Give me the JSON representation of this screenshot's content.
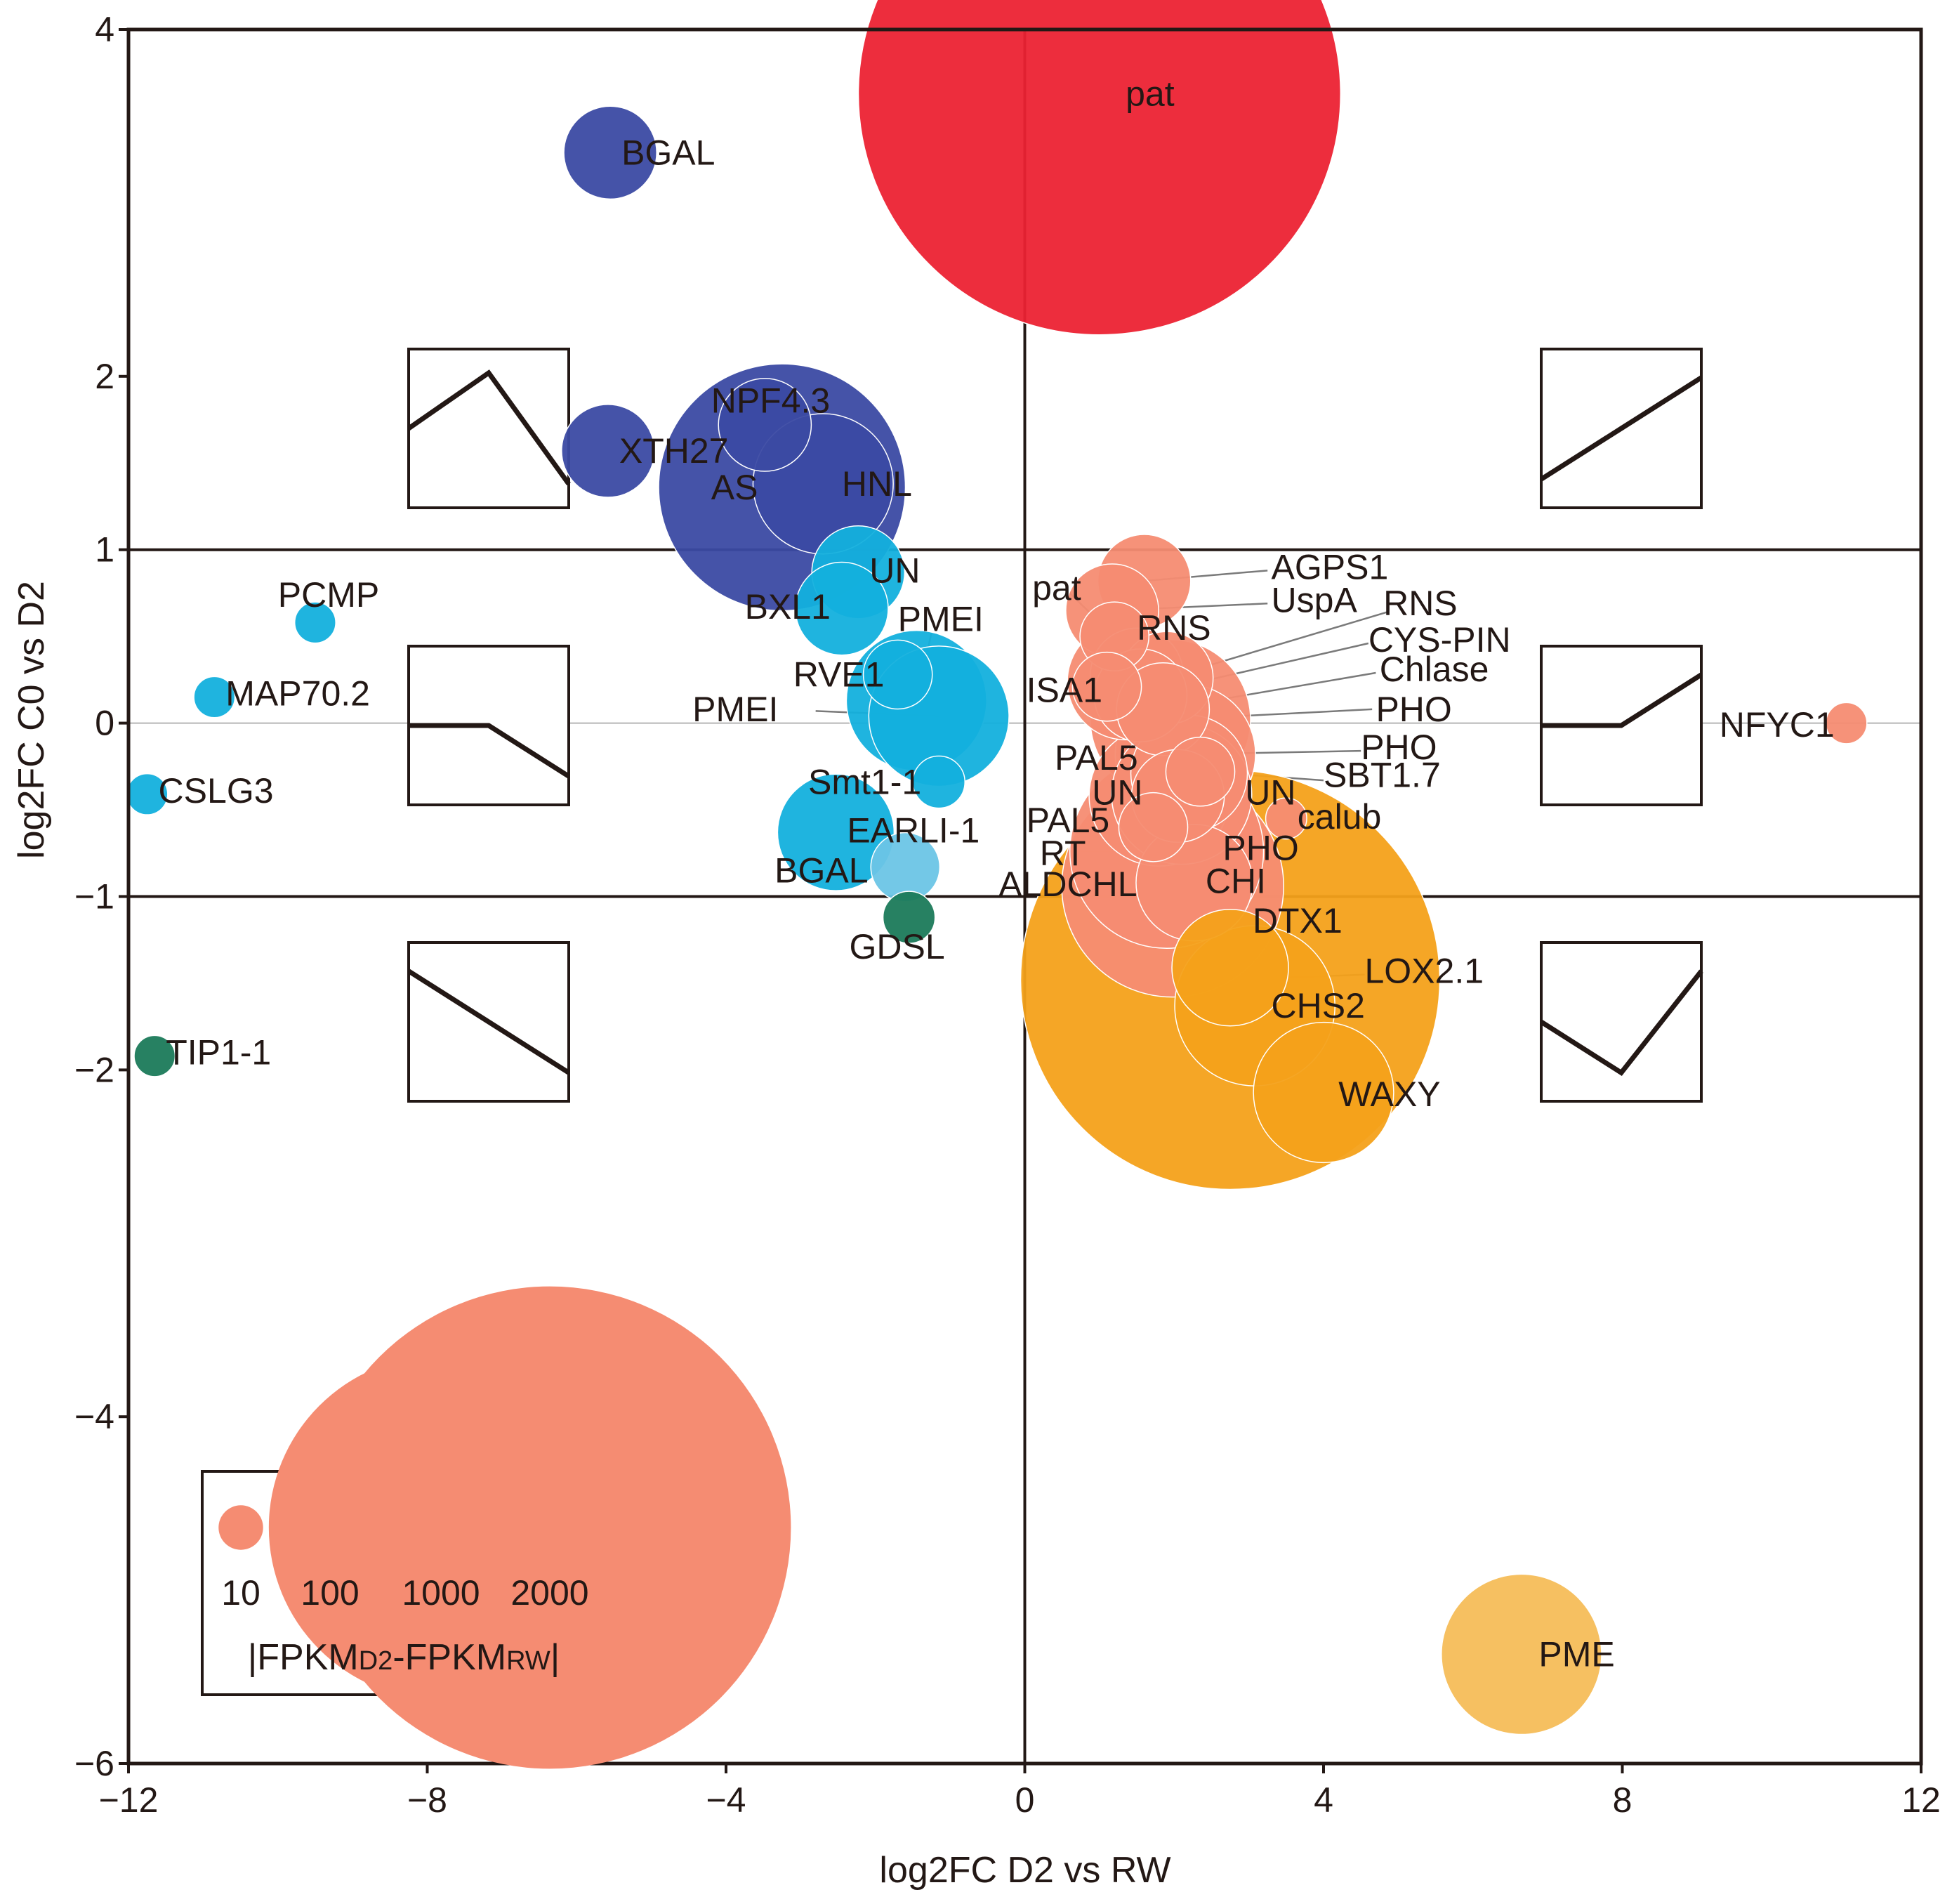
{
  "chart_data": {
    "type": "scatter",
    "title": "",
    "xlabel": "log2FC D2 vs RW",
    "ylabel": "log2FC C0 vs D2",
    "xlim": [
      -12,
      12
    ],
    "ylim": [
      -6,
      4
    ],
    "xticks": [
      -12,
      -8,
      -4,
      0,
      4,
      8,
      12
    ],
    "yticks": [
      4,
      2,
      1,
      0,
      -1,
      -2,
      -4,
      -6
    ],
    "xtick_labels": [
      "−12",
      "−8",
      "−4",
      "0",
      "4",
      "8",
      "12"
    ],
    "ytick_labels": [
      "4",
      "2",
      "1",
      "0",
      "−1",
      "−2",
      "−4",
      "−6"
    ],
    "thresholds": {
      "y": [
        1,
        -1
      ],
      "x": [
        0
      ]
    },
    "colors": {
      "navy": "#3b4aa3",
      "cyan": "#13b0dd",
      "lightblue": "#6cc5e6",
      "green": "#1b7a5a",
      "red": "#ec2233",
      "salmon": "#f58c72",
      "orange": "#f4a11a",
      "lightorange": "#f6bd59",
      "leader": "#7a7a7a"
    },
    "points": [
      {
        "label": "pat",
        "x": 1.0,
        "y": 3.63,
        "size": 2000,
        "color": "red",
        "lx": 1.35,
        "ly": 3.63
      },
      {
        "label": "BGAL",
        "x": -5.55,
        "y": 3.29,
        "size": 60,
        "color": "navy",
        "lx": -5.4,
        "ly": 3.29
      },
      {
        "label": "NPF4.3",
        "x": -3.48,
        "y": 1.72,
        "size": 60,
        "color": "navy",
        "lx": -4.2,
        "ly": 1.86
      },
      {
        "label": "XTH27",
        "x": -5.58,
        "y": 1.57,
        "size": 60,
        "color": "navy",
        "lx": -5.43,
        "ly": 1.57
      },
      {
        "label": "AS",
        "x": -3.25,
        "y": 1.36,
        "size": 500,
        "color": "navy",
        "lx": -4.2,
        "ly": 1.36
      },
      {
        "label": "HNL",
        "x": -2.7,
        "y": 1.38,
        "size": 150,
        "color": "navy",
        "lx": -2.45,
        "ly": 1.38
      },
      {
        "label": "UN",
        "x": -2.23,
        "y": 0.87,
        "size": 60,
        "color": "cyan",
        "lx": -2.08,
        "ly": 0.88
      },
      {
        "label": "PCMP",
        "x": -9.5,
        "y": 0.58,
        "size": 8,
        "color": "cyan",
        "lx": -10.0,
        "ly": 0.74
      },
      {
        "label": "BXL1",
        "x": -2.45,
        "y": 0.66,
        "size": 60,
        "color": "cyan",
        "lx": -3.75,
        "ly": 0.67
      },
      {
        "label": "PMEI",
        "x": -1.45,
        "y": 0.13,
        "size": 150,
        "color": "cyan",
        "lx": -1.7,
        "ly": 0.6
      },
      {
        "label": "RVE1",
        "x": -1.7,
        "y": 0.28,
        "size": 30,
        "color": "cyan",
        "lx": -3.1,
        "ly": 0.28
      },
      {
        "label": "PMEI",
        "x": -1.15,
        "y": 0.04,
        "size": 150,
        "color": "cyan",
        "lx": -4.45,
        "ly": 0.08
      },
      {
        "label": "MAP70.2",
        "x": -10.85,
        "y": 0.15,
        "size": 8,
        "color": "cyan",
        "lx": -10.7,
        "ly": 0.17
      },
      {
        "label": "CSLG3",
        "x": -11.75,
        "y": -0.41,
        "size": 8,
        "color": "cyan",
        "lx": -11.6,
        "ly": -0.39
      },
      {
        "label": "Smt1-1",
        "x": -1.15,
        "y": -0.34,
        "size": 15,
        "color": "cyan",
        "lx": -2.9,
        "ly": -0.34
      },
      {
        "label": "EARLI-1",
        "x": -2.53,
        "y": -0.63,
        "size": 100,
        "color": "cyan",
        "lx": -2.38,
        "ly": -0.62
      },
      {
        "label": "BGAL",
        "x": -1.6,
        "y": -0.83,
        "size": 30,
        "color": "lightblue",
        "lx": -3.35,
        "ly": -0.85
      },
      {
        "label": "GDSL",
        "x": -1.55,
        "y": -1.12,
        "size": 15,
        "color": "green",
        "lx": -2.35,
        "ly": -1.29
      },
      {
        "label": "TIP1-1",
        "x": -11.65,
        "y": -1.92,
        "size": 8,
        "color": "green",
        "lx": -11.5,
        "ly": -1.9
      },
      {
        "label": "AGPS1",
        "x": 1.6,
        "y": 0.82,
        "size": 60,
        "color": "salmon",
        "lx": 3.3,
        "ly": 0.9
      },
      {
        "label": "pat",
        "x": 1.2,
        "y": 0.5,
        "size": 30,
        "color": "salmon",
        "lx": 0.1,
        "ly": 0.78
      },
      {
        "label": "UspA",
        "x": 1.17,
        "y": 0.65,
        "size": 60,
        "color": "salmon",
        "lx": 3.3,
        "ly": 0.71
      },
      {
        "label": "RNS",
        "x": 1.5,
        "y": 0.28,
        "size": 60,
        "color": "salmon",
        "lx": 1.5,
        "ly": 0.55
      },
      {
        "label": "RNS",
        "x": 1.9,
        "y": 0.26,
        "size": 60,
        "color": "salmon",
        "lx": 4.8,
        "ly": 0.69
      },
      {
        "label": "ISA1",
        "x": 1.1,
        "y": 0.21,
        "size": 30,
        "color": "salmon",
        "lx": 0.02,
        "ly": 0.19
      },
      {
        "label": "ISA1",
        "x": 1.35,
        "y": 0.24,
        "size": 100,
        "color": "salmon",
        "lx": 0.02,
        "ly": 0.19
      },
      {
        "label": "CYS-PIN",
        "x": 1.55,
        "y": 0.16,
        "size": 60,
        "color": "salmon",
        "lx": 4.6,
        "ly": 0.48
      },
      {
        "label": "Chlase",
        "x": 1.85,
        "y": 0.08,
        "size": 60,
        "color": "salmon",
        "lx": 4.75,
        "ly": 0.31
      },
      {
        "label": "PHO",
        "x": 1.95,
        "y": 0.02,
        "size": 200,
        "color": "salmon",
        "lx": 4.7,
        "ly": 0.08
      },
      {
        "label": "NFYC1",
        "x": 11.0,
        "y": 0.0,
        "size": 8,
        "color": "salmon",
        "lx": 9.3,
        "ly": -0.01
      },
      {
        "label": "PHO",
        "x": 2.15,
        "y": -0.18,
        "size": 150,
        "color": "salmon",
        "lx": 4.5,
        "ly": -0.14
      },
      {
        "label": "PAL5",
        "x": 2.2,
        "y": -0.29,
        "size": 100,
        "color": "salmon",
        "lx": 0.4,
        "ly": -0.2
      },
      {
        "label": "SBT1.7",
        "x": 2.35,
        "y": -0.28,
        "size": 30,
        "color": "salmon",
        "lx": 4.0,
        "ly": -0.3
      },
      {
        "label": "UN",
        "x": 1.8,
        "y": -0.42,
        "size": 150,
        "color": "salmon",
        "lx": 0.9,
        "ly": -0.4
      },
      {
        "label": "UN",
        "x": 2.1,
        "y": -0.41,
        "size": 150,
        "color": "salmon",
        "lx": 2.95,
        "ly": -0.4
      },
      {
        "label": "calub",
        "x": 3.5,
        "y": -0.55,
        "size": 8,
        "color": "salmon",
        "lx": 3.65,
        "ly": -0.54
      },
      {
        "label": "PAL5",
        "x": 1.72,
        "y": -0.6,
        "size": 30,
        "color": "salmon",
        "lx": 0.02,
        "ly": -0.56
      },
      {
        "label": "PHO",
        "x": 2.05,
        "y": -0.42,
        "size": 60,
        "color": "salmon",
        "lx": 2.65,
        "ly": -0.72
      },
      {
        "label": "RT",
        "x": 1.9,
        "y": -0.74,
        "size": 300,
        "color": "salmon",
        "lx": 0.2,
        "ly": -0.75
      },
      {
        "label": "CHI",
        "x": 2.27,
        "y": -0.92,
        "size": 100,
        "color": "salmon",
        "lx": 2.42,
        "ly": -0.91
      },
      {
        "label": "ALDCHL",
        "x": 1.98,
        "y": -0.94,
        "size": 400,
        "color": "salmon",
        "lx": -0.35,
        "ly": -0.93
      },
      {
        "label": "DTX1",
        "x": 2.75,
        "y": -1.41,
        "size": 100,
        "color": "orange",
        "lx": 3.05,
        "ly": -1.14
      },
      {
        "label": "LOX2.1",
        "x": 2.75,
        "y": -1.48,
        "size": 1500,
        "color": "orange",
        "lx": 4.55,
        "ly": -1.43
      },
      {
        "label": "CHS2",
        "x": 3.08,
        "y": -1.63,
        "size": 200,
        "color": "orange",
        "lx": 3.3,
        "ly": -1.63
      },
      {
        "label": "WAXY",
        "x": 4.0,
        "y": -2.13,
        "size": 150,
        "color": "orange",
        "lx": 4.2,
        "ly": -2.14
      },
      {
        "label": "PME",
        "x": 6.65,
        "y": -5.37,
        "size": 200,
        "color": "lightorange",
        "lx": 6.88,
        "ly": -5.37
      }
    ],
    "leaders": [
      {
        "x1": 1.6,
        "y1": 0.82,
        "x2": 3.25,
        "y2": 0.88
      },
      {
        "x1": 1.2,
        "y1": 0.5,
        "x2": 0.6,
        "y2": 0.75
      },
      {
        "x1": 1.17,
        "y1": 0.65,
        "x2": 3.25,
        "y2": 0.69
      },
      {
        "x1": 1.5,
        "y1": 0.28,
        "x2": 1.75,
        "y2": 0.5
      },
      {
        "x1": 1.9,
        "y1": 0.26,
        "x2": 4.85,
        "y2": 0.64
      },
      {
        "x1": 1.55,
        "y1": 0.16,
        "x2": 4.6,
        "y2": 0.46
      },
      {
        "x1": 1.85,
        "y1": 0.08,
        "x2": 4.7,
        "y2": 0.29
      },
      {
        "x1": 1.95,
        "y1": 0.02,
        "x2": 4.65,
        "y2": 0.08
      },
      {
        "x1": 2.15,
        "y1": -0.18,
        "x2": 4.5,
        "y2": -0.16
      },
      {
        "x1": 2.2,
        "y1": -0.29,
        "x2": 1.3,
        "y2": -0.22
      },
      {
        "x1": 2.35,
        "y1": -0.28,
        "x2": 4.0,
        "y2": -0.33
      },
      {
        "x1": 2.1,
        "y1": -0.41,
        "x2": 2.9,
        "y2": -0.41
      },
      {
        "x1": 2.05,
        "y1": -0.42,
        "x2": 2.65,
        "y2": -0.7
      },
      {
        "x1": 1.72,
        "y1": -0.6,
        "x2": 1.3,
        "y2": -0.58
      },
      {
        "x1": 1.9,
        "y1": -0.74,
        "x2": 0.75,
        "y2": -0.74
      },
      {
        "x1": 1.98,
        "y1": -0.94,
        "x2": 1.65,
        "y2": -0.94
      },
      {
        "x1": 2.75,
        "y1": -1.41,
        "x2": 3.05,
        "y2": -1.12
      },
      {
        "x1": 2.75,
        "y1": -1.48,
        "x2": 4.55,
        "y2": -1.45
      },
      {
        "x1": -1.45,
        "y1": 0.13,
        "x2": -1.25,
        "y2": 0.52
      },
      {
        "x1": -1.15,
        "y1": 0.04,
        "x2": -2.8,
        "y2": 0.07
      }
    ],
    "trend_insets": [
      {
        "quadrant": "upper-left",
        "profile": [
          0.5,
          0.85,
          0.15
        ]
      },
      {
        "quadrant": "upper-right",
        "profile": [
          0.18,
          0.5,
          0.82
        ]
      },
      {
        "quadrant": "middle-left",
        "profile": [
          0.5,
          0.5,
          0.18
        ]
      },
      {
        "quadrant": "middle-right",
        "profile": [
          0.5,
          0.5,
          0.82
        ]
      },
      {
        "quadrant": "lower-left",
        "profile": [
          0.82,
          0.5,
          0.18
        ]
      },
      {
        "quadrant": "lower-right",
        "profile": [
          0.5,
          0.18,
          0.82
        ]
      }
    ],
    "legend": {
      "placement": "bottom-left",
      "sizes": [
        10,
        100,
        1000,
        2000
      ],
      "size_labels": [
        "10",
        "100",
        "1000",
        "2000"
      ],
      "title": "|FPKMD2-FPKMRW|",
      "title_main_1": "|FPKM",
      "title_sub_1": "D2",
      "title_main_2": "-FPKM",
      "title_sub_2": "RW",
      "title_end": "|"
    }
  }
}
